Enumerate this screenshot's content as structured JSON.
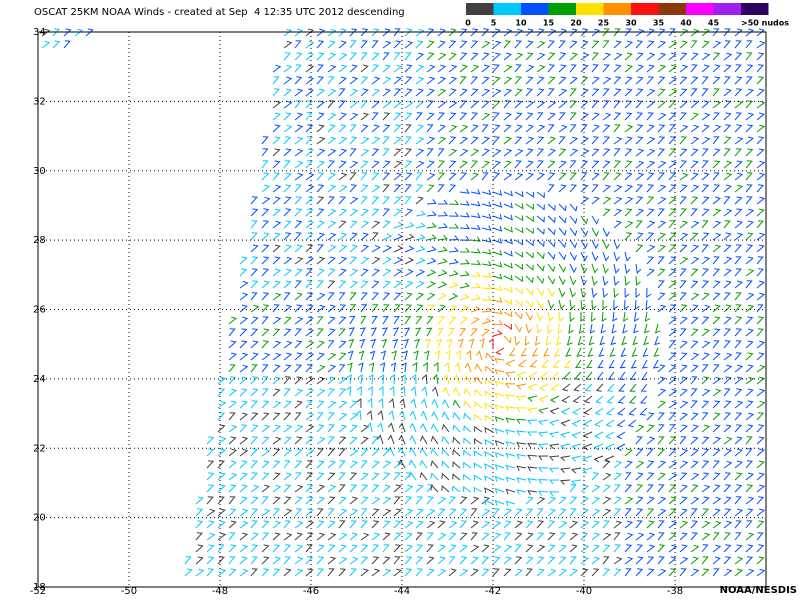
{
  "header": {
    "title": "OSCAT 25KM NOAA Winds - created at Sep  4 12:35 UTC 2012 descending"
  },
  "colorbar": {
    "labels": [
      0,
      5,
      10,
      15,
      20,
      25,
      30,
      35,
      40,
      45,
      ">50 nudos"
    ],
    "colors": [
      "#404040",
      "#00c8ff",
      "#0050ff",
      "#00a000",
      "#ffe000",
      "#ff9000",
      "#ff1010",
      "#8b3a10",
      "#ff00ff",
      "#a020f0",
      "#300060"
    ]
  },
  "map": {
    "xlim": [
      -52,
      -36
    ],
    "xticks": [
      -52,
      -50,
      -48,
      -46,
      -44,
      -42,
      -40,
      -38
    ],
    "ylim": [
      18,
      34
    ],
    "yticks": [
      18,
      20,
      22,
      24,
      26,
      28,
      30,
      32,
      34
    ],
    "grid": true,
    "credit": "NOAA/NESDIS"
  }
}
